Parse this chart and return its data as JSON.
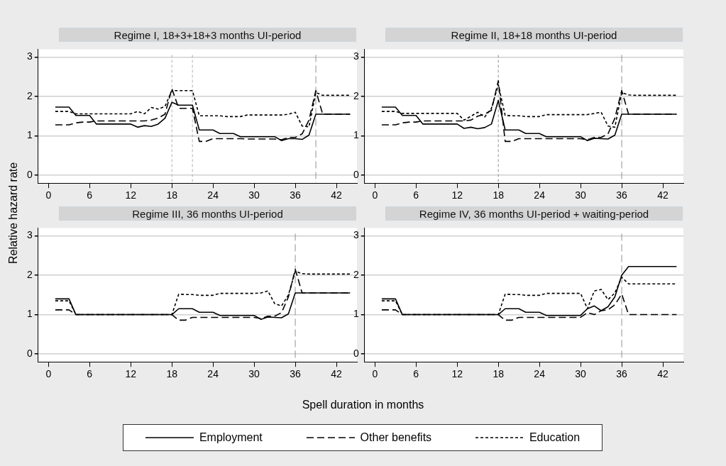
{
  "chart_data": [
    {
      "type": "line",
      "title": "Regime I, 18+3+18+3 months UI-period",
      "xlabel": "Spell duration in months",
      "ylabel": "Relative hazard rate",
      "legend": "bottom",
      "grid": "y",
      "marker": "none",
      "x": [
        1,
        2,
        3,
        4,
        5,
        6,
        7,
        8,
        9,
        10,
        11,
        12,
        13,
        14,
        15,
        16,
        17,
        18,
        19,
        20,
        21,
        22,
        23,
        24,
        25,
        26,
        27,
        28,
        29,
        30,
        31,
        32,
        33,
        34,
        35,
        36,
        37,
        38,
        39,
        40,
        41,
        42,
        43,
        44
      ],
      "xlim": [
        -1.5,
        45
      ],
      "xticks": [
        0,
        6,
        12,
        18,
        24,
        30,
        36,
        42
      ],
      "ylim": [
        -0.2,
        3.2
      ],
      "yticks": [
        0,
        1,
        2,
        3
      ],
      "ref_lines": [
        {
          "axis": "x",
          "value": 18,
          "line_style": "dotted",
          "color": "#b0b0b0"
        },
        {
          "axis": "x",
          "value": 21,
          "line_style": "dotted",
          "color": "#b0b0b0"
        },
        {
          "axis": "x",
          "value": 39,
          "line_style": "dashed",
          "color": "#909090"
        }
      ],
      "series": [
        {
          "name": "Employment",
          "color": "#000000",
          "line_style": "solid",
          "values": [
            1.73,
            1.73,
            1.73,
            1.52,
            1.52,
            1.52,
            1.3,
            1.3,
            1.3,
            1.3,
            1.3,
            1.3,
            1.22,
            1.26,
            1.24,
            1.3,
            1.45,
            1.85,
            1.78,
            1.78,
            1.78,
            1.15,
            1.15,
            1.15,
            1.06,
            1.06,
            1.06,
            0.98,
            0.98,
            0.98,
            0.98,
            0.98,
            0.98,
            0.88,
            0.93,
            0.93,
            0.91,
            1.02,
            1.55,
            1.55,
            1.55,
            1.55,
            1.55,
            1.55
          ]
        },
        {
          "name": "Other benefits",
          "color": "#000000",
          "line_style": "dashed",
          "values": [
            1.28,
            1.28,
            1.28,
            1.33,
            1.35,
            1.35,
            1.38,
            1.38,
            1.38,
            1.38,
            1.38,
            1.38,
            1.38,
            1.38,
            1.4,
            1.45,
            1.55,
            2.2,
            1.7,
            1.7,
            1.7,
            0.86,
            0.86,
            0.93,
            0.93,
            0.93,
            0.93,
            0.93,
            0.92,
            0.92,
            0.92,
            0.92,
            0.92,
            0.9,
            0.96,
            0.96,
            1.05,
            1.4,
            2.15,
            1.55,
            1.55,
            1.55,
            1.55,
            1.55
          ]
        },
        {
          "name": "Education",
          "color": "#000000",
          "line_style": "dotted",
          "values": [
            1.62,
            1.62,
            1.62,
            1.56,
            1.56,
            1.56,
            1.56,
            1.56,
            1.56,
            1.56,
            1.56,
            1.56,
            1.62,
            1.56,
            1.72,
            1.68,
            1.75,
            2.15,
            2.15,
            2.15,
            2.15,
            1.51,
            1.51,
            1.51,
            1.51,
            1.49,
            1.49,
            1.49,
            1.53,
            1.53,
            1.53,
            1.53,
            1.53,
            1.53,
            1.55,
            1.6,
            1.25,
            1.23,
            2.1,
            2.03,
            2.03,
            2.03,
            2.03,
            2.03
          ]
        }
      ]
    },
    {
      "type": "line",
      "title": "Regime II, 18+18 months UI-period",
      "grid": "y",
      "marker": "none",
      "x": [
        1,
        2,
        3,
        4,
        5,
        6,
        7,
        8,
        9,
        10,
        11,
        12,
        13,
        14,
        15,
        16,
        17,
        18,
        19,
        20,
        21,
        22,
        23,
        24,
        25,
        26,
        27,
        28,
        29,
        30,
        31,
        32,
        33,
        34,
        35,
        36,
        37,
        38,
        39,
        40,
        41,
        42,
        43,
        44
      ],
      "xlim": [
        -1.5,
        45
      ],
      "xticks": [
        0,
        6,
        12,
        18,
        24,
        30,
        36,
        42
      ],
      "ylim": [
        -0.2,
        3.2
      ],
      "yticks": [
        0,
        1,
        2,
        3
      ],
      "ref_lines": [
        {
          "axis": "x",
          "value": 18,
          "line_style": "dotted",
          "color": "#909090"
        },
        {
          "axis": "x",
          "value": 36,
          "line_style": "dashed",
          "color": "#909090"
        }
      ],
      "series": [
        {
          "color": "#000000",
          "line_style": "solid",
          "values": [
            1.73,
            1.73,
            1.73,
            1.52,
            1.52,
            1.52,
            1.3,
            1.3,
            1.3,
            1.3,
            1.3,
            1.3,
            1.19,
            1.22,
            1.18,
            1.21,
            1.3,
            1.9,
            1.15,
            1.15,
            1.15,
            1.06,
            1.06,
            1.06,
            0.98,
            0.98,
            0.98,
            0.98,
            0.98,
            0.98,
            0.88,
            0.94,
            0.93,
            0.92,
            1.02,
            1.55,
            1.55,
            1.55,
            1.55,
            1.55,
            1.55,
            1.55,
            1.55,
            1.55
          ]
        },
        {
          "color": "#000000",
          "line_style": "dashed",
          "values": [
            1.28,
            1.28,
            1.28,
            1.33,
            1.35,
            1.35,
            1.38,
            1.38,
            1.38,
            1.38,
            1.38,
            1.38,
            1.38,
            1.4,
            1.5,
            1.55,
            1.65,
            2.4,
            0.86,
            0.86,
            0.93,
            0.93,
            0.93,
            0.93,
            0.93,
            0.93,
            0.93,
            0.93,
            0.93,
            0.93,
            0.9,
            0.96,
            0.96,
            1.05,
            1.45,
            2.15,
            1.55,
            1.55,
            1.55,
            1.55,
            1.55,
            1.55,
            1.55,
            1.55
          ]
        },
        {
          "color": "#000000",
          "line_style": "dotted",
          "values": [
            1.62,
            1.62,
            1.62,
            1.57,
            1.57,
            1.57,
            1.57,
            1.57,
            1.57,
            1.57,
            1.57,
            1.57,
            1.4,
            1.5,
            1.6,
            1.48,
            1.7,
            2.3,
            1.52,
            1.51,
            1.51,
            1.49,
            1.49,
            1.49,
            1.54,
            1.54,
            1.54,
            1.54,
            1.54,
            1.54,
            1.54,
            1.57,
            1.6,
            1.25,
            1.22,
            2.1,
            2.04,
            2.03,
            2.03,
            2.03,
            2.03,
            2.03,
            2.03,
            2.03
          ]
        }
      ]
    },
    {
      "type": "line",
      "title": "Regime III, 36 months UI-period",
      "grid": "y",
      "marker": "none",
      "x": [
        1,
        2,
        3,
        4,
        5,
        6,
        7,
        8,
        9,
        10,
        11,
        12,
        13,
        14,
        15,
        16,
        17,
        18,
        19,
        20,
        21,
        22,
        23,
        24,
        25,
        26,
        27,
        28,
        29,
        30,
        31,
        32,
        33,
        34,
        35,
        36,
        37,
        38,
        39,
        40,
        41,
        42,
        43,
        44
      ],
      "xlim": [
        -1.5,
        45
      ],
      "xticks": [
        0,
        6,
        12,
        18,
        24,
        30,
        36,
        42
      ],
      "ylim": [
        -0.2,
        3.2
      ],
      "yticks": [
        0,
        1,
        2,
        3
      ],
      "ref_lines": [
        {
          "axis": "x",
          "value": 36,
          "line_style": "dashed",
          "color": "#909090"
        }
      ],
      "series": [
        {
          "color": "#000000",
          "line_style": "solid",
          "values": [
            1.4,
            1.4,
            1.4,
            1,
            1,
            1,
            1,
            1,
            1,
            1,
            1,
            1,
            1,
            1,
            1,
            1,
            1,
            1,
            1.15,
            1.15,
            1.15,
            1.06,
            1.06,
            1.06,
            0.98,
            0.98,
            0.98,
            0.98,
            0.98,
            0.98,
            0.88,
            0.94,
            0.93,
            0.92,
            1.02,
            1.55,
            1.55,
            1.55,
            1.55,
            1.55,
            1.55,
            1.55,
            1.55,
            1.55
          ]
        },
        {
          "color": "#000000",
          "line_style": "dashed",
          "values": [
            1.12,
            1.12,
            1.12,
            1,
            1,
            1,
            1,
            1,
            1,
            1,
            1,
            1,
            1,
            1,
            1,
            1,
            1,
            1,
            0.86,
            0.86,
            0.93,
            0.93,
            0.93,
            0.93,
            0.93,
            0.93,
            0.93,
            0.93,
            0.93,
            0.93,
            0.9,
            0.96,
            0.96,
            1.05,
            1.45,
            2.15,
            1.55,
            1.55,
            1.55,
            1.55,
            1.55,
            1.55,
            1.55,
            1.55
          ]
        },
        {
          "color": "#000000",
          "line_style": "dotted",
          "values": [
            1.35,
            1.35,
            1.35,
            1,
            1,
            1,
            1,
            1,
            1,
            1,
            1,
            1,
            1,
            1,
            1,
            1,
            1,
            1,
            1.52,
            1.51,
            1.51,
            1.49,
            1.49,
            1.49,
            1.54,
            1.54,
            1.54,
            1.54,
            1.54,
            1.54,
            1.55,
            1.6,
            1.28,
            1.22,
            1.5,
            2.1,
            2.04,
            2.03,
            2.03,
            2.03,
            2.03,
            2.03,
            2.03,
            2.03
          ]
        }
      ]
    },
    {
      "type": "line",
      "title": "Regime IV, 36 months UI-period + waiting-period",
      "grid": "y",
      "marker": "none",
      "x": [
        1,
        2,
        3,
        4,
        5,
        6,
        7,
        8,
        9,
        10,
        11,
        12,
        13,
        14,
        15,
        16,
        17,
        18,
        19,
        20,
        21,
        22,
        23,
        24,
        25,
        26,
        27,
        28,
        29,
        30,
        31,
        32,
        33,
        34,
        35,
        36,
        37,
        38,
        39,
        40,
        41,
        42,
        43,
        44
      ],
      "xlim": [
        -1.5,
        45
      ],
      "xticks": [
        0,
        6,
        12,
        18,
        24,
        30,
        36,
        42
      ],
      "ylim": [
        -0.2,
        3.2
      ],
      "yticks": [
        0,
        1,
        2,
        3
      ],
      "ref_lines": [
        {
          "axis": "x",
          "value": 36,
          "line_style": "dashed",
          "color": "#909090"
        }
      ],
      "series": [
        {
          "color": "#000000",
          "line_style": "solid",
          "values": [
            1.4,
            1.4,
            1.4,
            1,
            1,
            1,
            1,
            1,
            1,
            1,
            1,
            1,
            1,
            1,
            1,
            1,
            1,
            1,
            1.15,
            1.15,
            1.15,
            1.06,
            1.06,
            1.06,
            0.98,
            0.98,
            0.98,
            0.98,
            0.98,
            0.98,
            1.15,
            1.22,
            1.1,
            1.2,
            1.45,
            2,
            2.22,
            2.22,
            2.22,
            2.22,
            2.22,
            2.22,
            2.22,
            2.22
          ]
        },
        {
          "color": "#000000",
          "line_style": "dashed",
          "values": [
            1.12,
            1.12,
            1.12,
            1,
            1,
            1,
            1,
            1,
            1,
            1,
            1,
            1,
            1,
            1,
            1,
            1,
            1,
            1,
            0.86,
            0.86,
            0.93,
            0.93,
            0.93,
            0.93,
            0.93,
            0.93,
            0.93,
            0.93,
            0.93,
            0.93,
            1.05,
            1,
            1.1,
            1.12,
            1.25,
            1.52,
            1,
            1,
            1,
            1,
            1,
            1,
            1,
            1
          ]
        },
        {
          "color": "#000000",
          "line_style": "dotted",
          "values": [
            1.35,
            1.35,
            1.35,
            1,
            1,
            1,
            1,
            1,
            1,
            1,
            1,
            1,
            1,
            1,
            1,
            1,
            1,
            1,
            1.52,
            1.51,
            1.51,
            1.49,
            1.49,
            1.49,
            1.54,
            1.54,
            1.54,
            1.54,
            1.54,
            1.54,
            1.15,
            1.6,
            1.64,
            1.38,
            1.55,
            1.95,
            1.78,
            1.78,
            1.78,
            1.78,
            1.78,
            1.78,
            1.78,
            1.78
          ]
        }
      ]
    }
  ]
}
